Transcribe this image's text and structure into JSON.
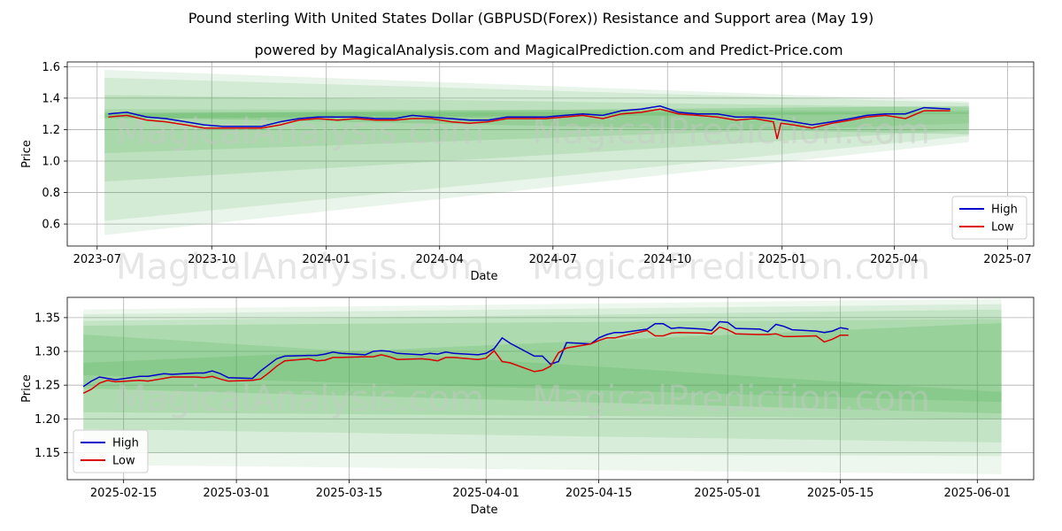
{
  "title": "Pound sterling With United States Dollar (GBPUSD(Forex)) Resistance and Support area (May 19)",
  "subtitle": "powered by MagicalAnalysis.com and MagicalPrediction.com and Predict-Price.com",
  "watermarks": [
    "MagicalAnalysis.com",
    "MagicalPrediction.com"
  ],
  "colors": {
    "high": "#0000cc",
    "low": "#dd0000",
    "band": "#4caf50",
    "grid": "#b0b0b0"
  },
  "chart_data": [
    {
      "type": "line",
      "xlabel": "Date",
      "ylabel": "Price",
      "xlim": [
        "2023-06-07",
        "2025-07-22"
      ],
      "ylim": [
        0.46,
        1.63
      ],
      "yticks": [
        0.6,
        0.8,
        1.0,
        1.2,
        1.4,
        1.6
      ],
      "yticklabels": [
        "0.6",
        "0.8",
        "1.0",
        "1.2",
        "1.4",
        "1.6"
      ],
      "xticks": [
        "2023-07-01",
        "2023-10-01",
        "2024-01-01",
        "2024-04-01",
        "2024-07-01",
        "2024-10-01",
        "2025-01-01",
        "2025-04-01",
        "2025-07-01"
      ],
      "xticklabels": [
        "2023-07",
        "2023-10",
        "2024-01",
        "2024-04",
        "2024-07",
        "2024-10",
        "2025-01",
        "2025-04",
        "2025-07"
      ],
      "grid": true,
      "legend": "lower right",
      "series": [
        {
          "name": "High",
          "x": [
            "2023-07-10",
            "2023-07-25",
            "2023-08-10",
            "2023-08-25",
            "2023-09-10",
            "2023-09-25",
            "2023-10-10",
            "2023-10-25",
            "2023-11-10",
            "2023-11-25",
            "2023-12-10",
            "2023-12-25",
            "2024-01-10",
            "2024-01-25",
            "2024-02-10",
            "2024-02-25",
            "2024-03-10",
            "2024-03-25",
            "2024-04-10",
            "2024-04-25",
            "2024-05-10",
            "2024-05-25",
            "2024-06-10",
            "2024-06-25",
            "2024-07-10",
            "2024-07-25",
            "2024-08-10",
            "2024-08-25",
            "2024-09-10",
            "2024-09-25",
            "2024-10-10",
            "2024-10-25",
            "2024-11-10",
            "2024-11-25",
            "2024-12-10",
            "2024-12-25",
            "2025-01-10",
            "2025-01-25",
            "2025-02-10",
            "2025-02-25",
            "2025-03-10",
            "2025-03-25",
            "2025-04-10",
            "2025-04-25",
            "2025-05-16"
          ],
          "values": [
            1.3,
            1.31,
            1.28,
            1.27,
            1.25,
            1.23,
            1.22,
            1.22,
            1.22,
            1.25,
            1.27,
            1.28,
            1.28,
            1.28,
            1.27,
            1.27,
            1.29,
            1.28,
            1.27,
            1.26,
            1.26,
            1.28,
            1.28,
            1.28,
            1.29,
            1.3,
            1.29,
            1.32,
            1.33,
            1.35,
            1.31,
            1.3,
            1.3,
            1.28,
            1.28,
            1.27,
            1.25,
            1.23,
            1.25,
            1.27,
            1.29,
            1.3,
            1.3,
            1.34,
            1.33
          ]
        },
        {
          "name": "Low",
          "x": [
            "2023-07-10",
            "2023-07-25",
            "2023-08-10",
            "2023-08-25",
            "2023-09-10",
            "2023-09-25",
            "2023-10-10",
            "2023-10-25",
            "2023-11-10",
            "2023-11-25",
            "2023-12-10",
            "2023-12-25",
            "2024-01-10",
            "2024-01-25",
            "2024-02-10",
            "2024-02-25",
            "2024-03-10",
            "2024-03-25",
            "2024-04-10",
            "2024-04-25",
            "2024-05-10",
            "2024-05-25",
            "2024-06-10",
            "2024-06-25",
            "2024-07-10",
            "2024-07-25",
            "2024-08-10",
            "2024-08-25",
            "2024-09-10",
            "2024-09-25",
            "2024-10-10",
            "2024-10-25",
            "2024-11-10",
            "2024-11-25",
            "2024-12-10",
            "2024-12-25",
            "2024-12-28",
            "2024-12-31",
            "2025-01-10",
            "2025-01-25",
            "2025-02-10",
            "2025-02-25",
            "2025-03-10",
            "2025-03-25",
            "2025-04-10",
            "2025-04-25",
            "2025-05-16"
          ],
          "values": [
            1.28,
            1.29,
            1.26,
            1.25,
            1.23,
            1.21,
            1.21,
            1.21,
            1.21,
            1.23,
            1.26,
            1.27,
            1.26,
            1.27,
            1.26,
            1.26,
            1.27,
            1.27,
            1.25,
            1.24,
            1.25,
            1.27,
            1.27,
            1.27,
            1.28,
            1.29,
            1.27,
            1.3,
            1.31,
            1.33,
            1.3,
            1.29,
            1.28,
            1.26,
            1.27,
            1.25,
            1.14,
            1.24,
            1.23,
            1.21,
            1.24,
            1.26,
            1.28,
            1.29,
            1.27,
            1.32,
            1.32
          ]
        }
      ],
      "bands": [
        {
          "x": [
            "2023-07-07",
            "2025-05-31"
          ],
          "upper": [
            1.58,
            1.38
          ],
          "lower": [
            0.53,
            1.12
          ],
          "opacity": 0.12
        },
        {
          "x": [
            "2023-07-07",
            "2025-05-31"
          ],
          "upper": [
            1.53,
            1.37
          ],
          "lower": [
            0.62,
            1.16
          ],
          "opacity": 0.14
        },
        {
          "x": [
            "2023-07-07",
            "2025-05-31"
          ],
          "upper": [
            1.42,
            1.34
          ],
          "lower": [
            0.87,
            1.2
          ],
          "opacity": 0.16
        },
        {
          "x": [
            "2023-07-07",
            "2025-05-31"
          ],
          "upper": [
            1.33,
            1.32
          ],
          "lower": [
            1.05,
            1.24
          ],
          "opacity": 0.18
        },
        {
          "x": [
            "2023-07-07",
            "2025-05-31"
          ],
          "upper": [
            1.31,
            1.31
          ],
          "lower": [
            1.28,
            1.17
          ],
          "opacity": 0.22
        },
        {
          "x": [
            "2023-07-07",
            "2025-05-31"
          ],
          "upper": [
            1.3,
            1.35
          ],
          "lower": [
            1.27,
            1.3
          ],
          "opacity": 0.25
        }
      ]
    },
    {
      "type": "line",
      "xlabel": "Date",
      "ylabel": "Price",
      "xlim": [
        "2025-02-08",
        "2025-06-08"
      ],
      "ylim": [
        1.11,
        1.38
      ],
      "yticks": [
        1.15,
        1.2,
        1.25,
        1.3,
        1.35
      ],
      "yticklabels": [
        "1.15",
        "1.20",
        "1.25",
        "1.30",
        "1.35"
      ],
      "xticks": [
        "2025-02-15",
        "2025-03-01",
        "2025-03-15",
        "2025-04-01",
        "2025-04-15",
        "2025-05-01",
        "2025-05-15",
        "2025-06-01"
      ],
      "xticklabels": [
        "2025-02-15",
        "2025-03-01",
        "2025-03-15",
        "2025-04-01",
        "2025-04-15",
        "2025-05-01",
        "2025-05-15",
        "2025-06-01"
      ],
      "grid": true,
      "legend": "lower left",
      "series": [
        {
          "name": "High",
          "x": [
            "2025-02-10",
            "2025-02-11",
            "2025-02-12",
            "2025-02-13",
            "2025-02-14",
            "2025-02-17",
            "2025-02-18",
            "2025-02-19",
            "2025-02-20",
            "2025-02-21",
            "2025-02-24",
            "2025-02-25",
            "2025-02-26",
            "2025-02-27",
            "2025-02-28",
            "2025-03-03",
            "2025-03-04",
            "2025-03-05",
            "2025-03-06",
            "2025-03-07",
            "2025-03-10",
            "2025-03-11",
            "2025-03-12",
            "2025-03-13",
            "2025-03-14",
            "2025-03-17",
            "2025-03-18",
            "2025-03-19",
            "2025-03-20",
            "2025-03-21",
            "2025-03-24",
            "2025-03-25",
            "2025-03-26",
            "2025-03-27",
            "2025-03-28",
            "2025-03-31",
            "2025-04-01",
            "2025-04-02",
            "2025-04-03",
            "2025-04-04",
            "2025-04-07",
            "2025-04-08",
            "2025-04-09",
            "2025-04-10",
            "2025-04-11",
            "2025-04-14",
            "2025-04-15",
            "2025-04-16",
            "2025-04-17",
            "2025-04-18",
            "2025-04-21",
            "2025-04-22",
            "2025-04-23",
            "2025-04-24",
            "2025-04-25",
            "2025-04-28",
            "2025-04-29",
            "2025-04-30",
            "2025-05-01",
            "2025-05-02",
            "2025-05-05",
            "2025-05-06",
            "2025-05-07",
            "2025-05-08",
            "2025-05-09",
            "2025-05-12",
            "2025-05-13",
            "2025-05-14",
            "2025-05-15",
            "2025-05-16"
          ],
          "values": [
            1.248,
            1.256,
            1.262,
            1.26,
            1.258,
            1.263,
            1.263,
            1.265,
            1.267,
            1.266,
            1.268,
            1.268,
            1.271,
            1.267,
            1.261,
            1.26,
            1.271,
            1.28,
            1.289,
            1.293,
            1.294,
            1.294,
            1.296,
            1.299,
            1.297,
            1.295,
            1.3,
            1.301,
            1.3,
            1.297,
            1.295,
            1.297,
            1.296,
            1.299,
            1.297,
            1.295,
            1.297,
            1.304,
            1.32,
            1.312,
            1.293,
            1.293,
            1.281,
            1.285,
            1.313,
            1.311,
            1.32,
            1.325,
            1.328,
            1.328,
            1.333,
            1.341,
            1.341,
            1.334,
            1.335,
            1.333,
            1.331,
            1.344,
            1.343,
            1.334,
            1.333,
            1.329,
            1.34,
            1.337,
            1.332,
            1.33,
            1.328,
            1.33,
            1.335,
            1.333
          ]
        },
        {
          "name": "Low",
          "x": [
            "2025-02-10",
            "2025-02-11",
            "2025-02-12",
            "2025-02-13",
            "2025-02-14",
            "2025-02-17",
            "2025-02-18",
            "2025-02-19",
            "2025-02-20",
            "2025-02-21",
            "2025-02-24",
            "2025-02-25",
            "2025-02-26",
            "2025-02-27",
            "2025-02-28",
            "2025-03-03",
            "2025-03-04",
            "2025-03-05",
            "2025-03-06",
            "2025-03-07",
            "2025-03-10",
            "2025-03-11",
            "2025-03-12",
            "2025-03-13",
            "2025-03-14",
            "2025-03-17",
            "2025-03-18",
            "2025-03-19",
            "2025-03-20",
            "2025-03-21",
            "2025-03-24",
            "2025-03-25",
            "2025-03-26",
            "2025-03-27",
            "2025-03-28",
            "2025-03-31",
            "2025-04-01",
            "2025-04-02",
            "2025-04-03",
            "2025-04-04",
            "2025-04-07",
            "2025-04-08",
            "2025-04-09",
            "2025-04-10",
            "2025-04-11",
            "2025-04-14",
            "2025-04-15",
            "2025-04-16",
            "2025-04-17",
            "2025-04-18",
            "2025-04-21",
            "2025-04-22",
            "2025-04-23",
            "2025-04-24",
            "2025-04-25",
            "2025-04-28",
            "2025-04-29",
            "2025-04-30",
            "2025-05-01",
            "2025-05-02",
            "2025-05-05",
            "2025-05-06",
            "2025-05-07",
            "2025-05-08",
            "2025-05-09",
            "2025-05-12",
            "2025-05-13",
            "2025-05-14",
            "2025-05-15",
            "2025-05-16"
          ],
          "values": [
            1.238,
            1.244,
            1.253,
            1.257,
            1.255,
            1.257,
            1.256,
            1.258,
            1.26,
            1.262,
            1.262,
            1.261,
            1.263,
            1.259,
            1.256,
            1.257,
            1.259,
            1.268,
            1.278,
            1.286,
            1.289,
            1.286,
            1.287,
            1.291,
            1.291,
            1.292,
            1.292,
            1.295,
            1.292,
            1.288,
            1.289,
            1.288,
            1.286,
            1.291,
            1.291,
            1.288,
            1.29,
            1.301,
            1.285,
            1.283,
            1.27,
            1.272,
            1.278,
            1.298,
            1.305,
            1.311,
            1.316,
            1.32,
            1.32,
            1.323,
            1.331,
            1.323,
            1.323,
            1.327,
            1.328,
            1.327,
            1.326,
            1.336,
            1.332,
            1.326,
            1.325,
            1.325,
            1.326,
            1.322,
            1.322,
            1.323,
            1.314,
            1.318,
            1.324,
            1.324
          ]
        }
      ],
      "bands": [
        {
          "x": [
            "2025-02-10",
            "2025-06-04"
          ],
          "upper": [
            1.362,
            1.378
          ],
          "lower": [
            1.132,
            1.118
          ],
          "opacity": 0.1
        },
        {
          "x": [
            "2025-02-10",
            "2025-06-04"
          ],
          "upper": [
            1.355,
            1.37
          ],
          "lower": [
            1.15,
            1.145
          ],
          "opacity": 0.12
        },
        {
          "x": [
            "2025-02-10",
            "2025-06-04"
          ],
          "upper": [
            1.345,
            1.362
          ],
          "lower": [
            1.185,
            1.165
          ],
          "opacity": 0.15
        },
        {
          "x": [
            "2025-02-10",
            "2025-06-04"
          ],
          "upper": [
            1.338,
            1.348
          ],
          "lower": [
            1.21,
            1.2
          ],
          "opacity": 0.18
        },
        {
          "x": [
            "2025-02-10",
            "2025-06-04"
          ],
          "upper": [
            1.283,
            1.342
          ],
          "lower": [
            1.245,
            1.208
          ],
          "opacity": 0.22
        },
        {
          "x": [
            "2025-02-10",
            "2025-06-04"
          ],
          "upper": [
            1.325,
            1.24
          ],
          "lower": [
            1.265,
            1.225
          ],
          "opacity": 0.2
        }
      ]
    }
  ]
}
